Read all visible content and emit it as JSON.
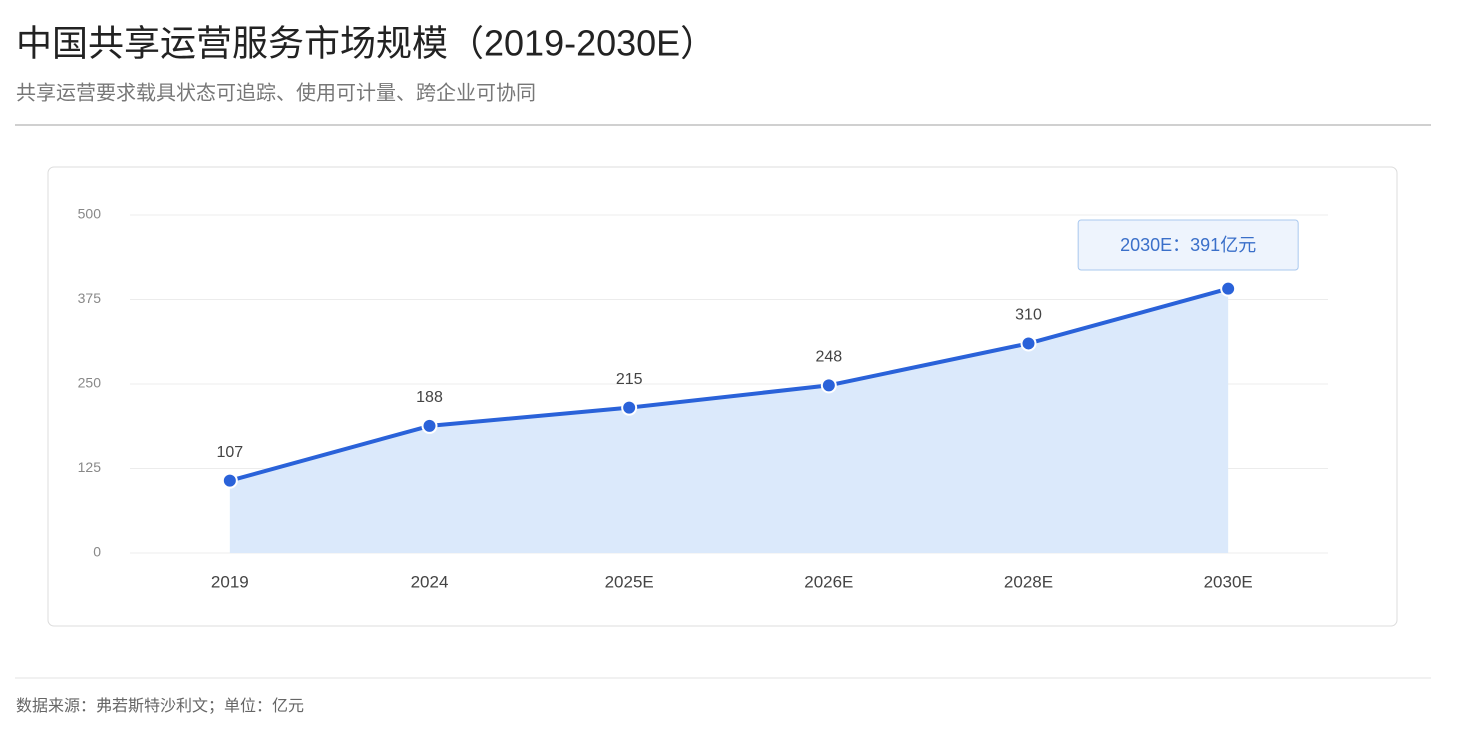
{
  "chart_data": {
    "type": "area",
    "title": "中国共享运营服务市场规模（2019-2030E）",
    "subtitle": "共享运营要求载具状态可追踪、使用可计量、跨企业可协同",
    "categories": [
      "2019",
      "2024",
      "2025E",
      "2026E",
      "2028E",
      "2030E"
    ],
    "values": [
      107,
      188,
      215,
      248,
      310,
      391
    ],
    "color": "#2a62d9",
    "fill_color": "#dbe9fb",
    "ylim": [
      0,
      500
    ],
    "yticks": [
      0,
      125,
      250,
      375,
      500
    ],
    "grid": true,
    "annotation": "2030E：391亿元",
    "source": "数据来源：弗若斯特沙利文；单位：亿元"
  }
}
